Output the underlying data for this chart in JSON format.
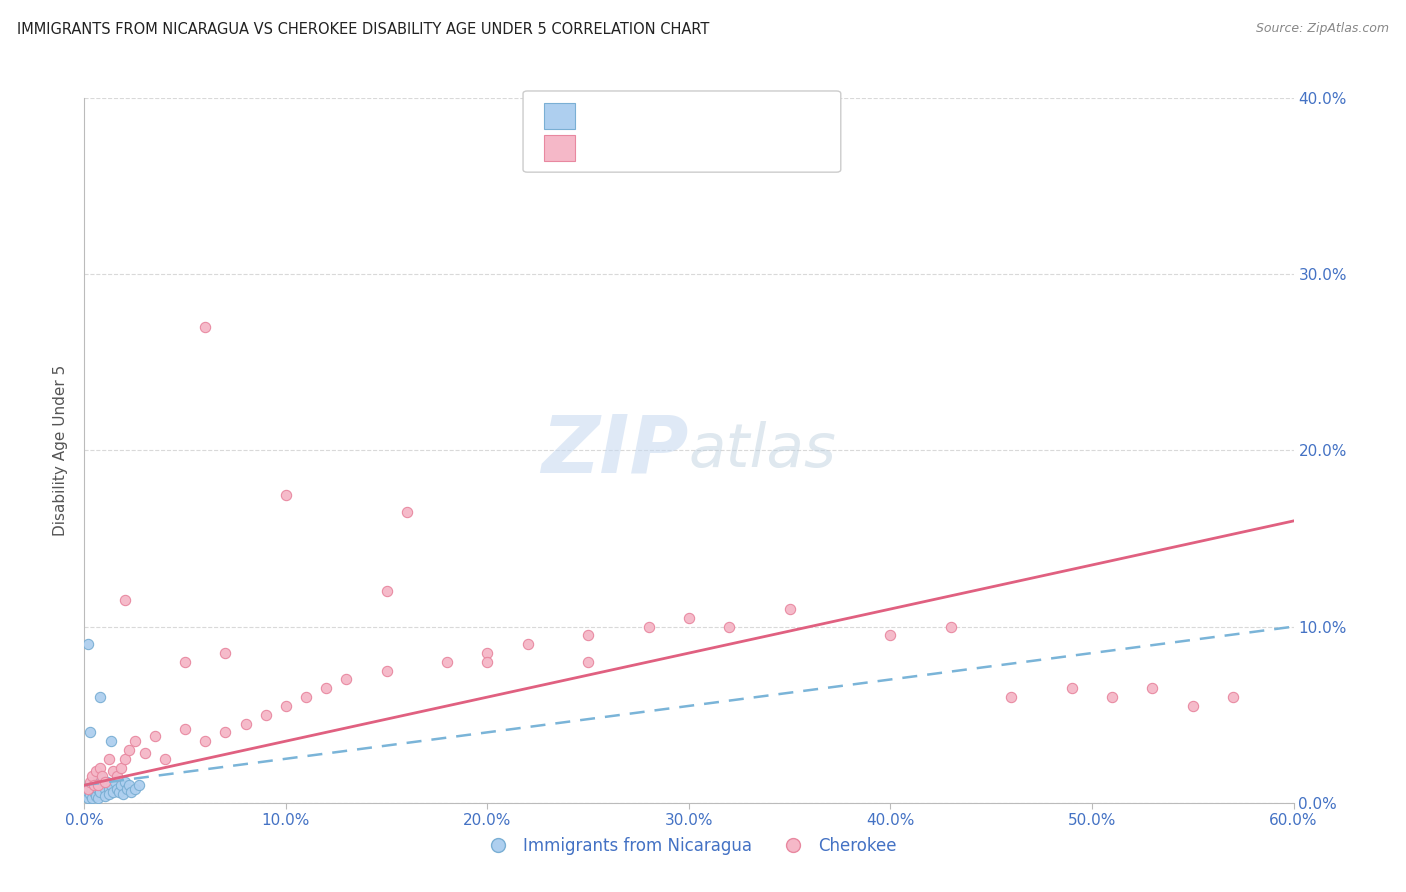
{
  "title": "IMMIGRANTS FROM NICARAGUA VS CHEROKEE DISABILITY AGE UNDER 5 CORRELATION CHART",
  "source": "Source: ZipAtlas.com",
  "ylabel": "Disability Age Under 5",
  "xlim": [
    0.0,
    0.6
  ],
  "ylim": [
    0.0,
    0.4
  ],
  "xticks": [
    0.0,
    0.1,
    0.2,
    0.3,
    0.4,
    0.5,
    0.6
  ],
  "yticks": [
    0.0,
    0.1,
    0.2,
    0.3,
    0.4
  ],
  "series1_color": "#aecfef",
  "series1_edge": "#7aafd4",
  "series2_color": "#f5b8c8",
  "series2_edge": "#e888a0",
  "line1_color": "#7ab4d8",
  "line2_color": "#e06080",
  "tick_color": "#4472c4",
  "grid_color": "#d0d0d0",
  "background": "#ffffff",
  "title_color": "#222222",
  "axis_label_color": "#555555",
  "watermark_color": "#c5d8f0",
  "series1_x": [
    0.001,
    0.002,
    0.002,
    0.003,
    0.003,
    0.004,
    0.004,
    0.005,
    0.005,
    0.006,
    0.006,
    0.007,
    0.007,
    0.008,
    0.008,
    0.009,
    0.01,
    0.01,
    0.011,
    0.012,
    0.012,
    0.013,
    0.014,
    0.015,
    0.016,
    0.017,
    0.018,
    0.019,
    0.02,
    0.021,
    0.022,
    0.023,
    0.025,
    0.027,
    0.002,
    0.003,
    0.013,
    0.008
  ],
  "series1_y": [
    0.005,
    0.008,
    0.003,
    0.01,
    0.005,
    0.008,
    0.003,
    0.012,
    0.006,
    0.01,
    0.004,
    0.008,
    0.003,
    0.015,
    0.006,
    0.01,
    0.008,
    0.004,
    0.012,
    0.008,
    0.005,
    0.01,
    0.006,
    0.012,
    0.008,
    0.006,
    0.01,
    0.005,
    0.012,
    0.008,
    0.01,
    0.006,
    0.008,
    0.01,
    0.09,
    0.04,
    0.035,
    0.06
  ],
  "series2_x": [
    0.002,
    0.003,
    0.004,
    0.005,
    0.006,
    0.007,
    0.008,
    0.009,
    0.01,
    0.012,
    0.014,
    0.016,
    0.018,
    0.02,
    0.022,
    0.025,
    0.03,
    0.035,
    0.04,
    0.05,
    0.06,
    0.07,
    0.08,
    0.09,
    0.1,
    0.11,
    0.12,
    0.13,
    0.15,
    0.16,
    0.18,
    0.2,
    0.22,
    0.25,
    0.28,
    0.3,
    0.32,
    0.35,
    0.4,
    0.43,
    0.46,
    0.49,
    0.51,
    0.53,
    0.55,
    0.57,
    0.06,
    0.1,
    0.15,
    0.2,
    0.25,
    0.02,
    0.05,
    0.07
  ],
  "series2_y": [
    0.008,
    0.012,
    0.015,
    0.01,
    0.018,
    0.01,
    0.02,
    0.015,
    0.012,
    0.025,
    0.018,
    0.015,
    0.02,
    0.025,
    0.03,
    0.035,
    0.028,
    0.038,
    0.025,
    0.042,
    0.035,
    0.04,
    0.045,
    0.05,
    0.055,
    0.06,
    0.065,
    0.07,
    0.075,
    0.165,
    0.08,
    0.085,
    0.09,
    0.095,
    0.1,
    0.105,
    0.1,
    0.11,
    0.095,
    0.1,
    0.06,
    0.065,
    0.06,
    0.065,
    0.055,
    0.06,
    0.27,
    0.175,
    0.12,
    0.08,
    0.08,
    0.115,
    0.08,
    0.085
  ]
}
